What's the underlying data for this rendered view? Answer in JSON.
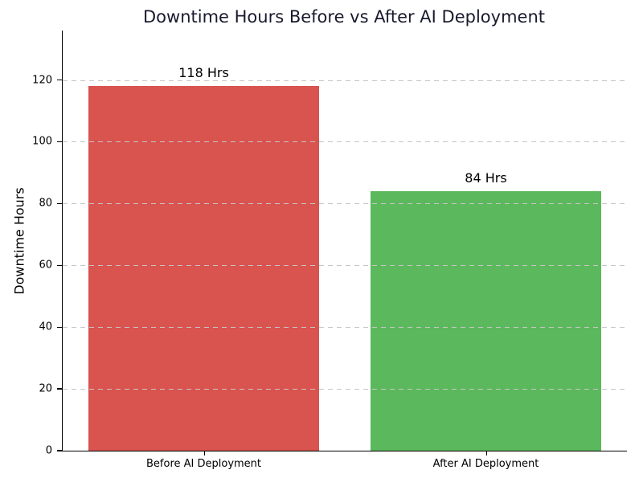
{
  "chart_data": {
    "type": "bar",
    "title": "Downtime Hours Before vs After AI Deployment",
    "title_color": "#1a1a2e",
    "xlabel": "",
    "ylabel": "Downtime Hours",
    "categories": [
      "Before AI Deployment",
      "After AI Deployment"
    ],
    "values": [
      118,
      84
    ],
    "value_labels": [
      "118 Hrs",
      "84 Hrs"
    ],
    "bar_colors": [
      "#d9534f",
      "#5cb85c"
    ],
    "ylim": [
      0,
      136
    ],
    "yticks": [
      0,
      20,
      40,
      60,
      80,
      100,
      120
    ],
    "grid": "horizontal-dashed",
    "grid_color": "#c6c6c6",
    "legend": "none"
  }
}
